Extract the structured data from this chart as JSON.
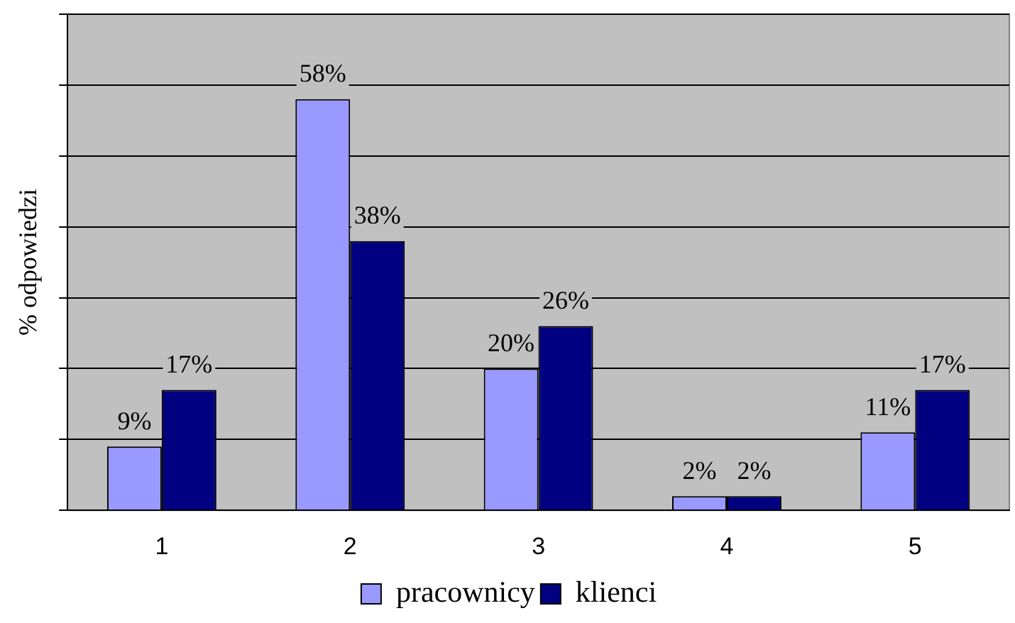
{
  "chart_data": {
    "type": "bar",
    "ylabel": "% odpowiedzi",
    "categories": [
      "1",
      "2",
      "3",
      "4",
      "5"
    ],
    "series": [
      {
        "name": "pracownicy",
        "color": "#9999ff",
        "values": [
          9,
          58,
          20,
          2,
          11
        ],
        "value_labels": [
          "9%",
          "58%",
          "20%",
          "2%",
          "11%"
        ]
      },
      {
        "name": "klienci",
        "color": "#000080",
        "values": [
          17,
          38,
          26,
          2,
          17
        ],
        "value_labels": [
          "17%",
          "38%",
          "26%",
          "2%",
          "17%"
        ]
      }
    ],
    "ylim": [
      0,
      70
    ],
    "yticks": [
      {
        "value": 0,
        "label": null
      },
      {
        "value": 10,
        "label": null
      },
      {
        "value": 20,
        "label": null
      },
      {
        "value": 30,
        "label": null
      },
      {
        "value": 40,
        "label": null
      },
      {
        "value": 50,
        "label": null
      },
      {
        "value": 60,
        "label": null
      },
      {
        "value": 70,
        "label": null
      }
    ],
    "tick_labels": "x",
    "grid": "y",
    "legend": "bottom"
  }
}
